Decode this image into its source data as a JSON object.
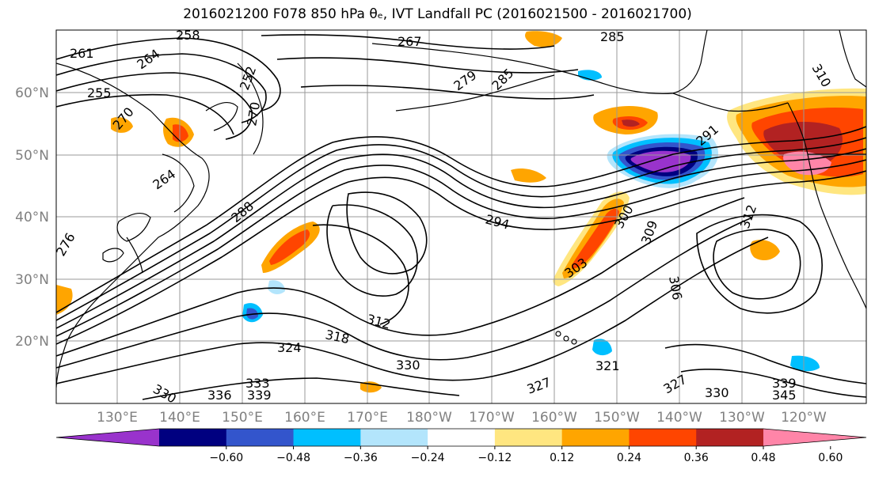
{
  "title": "2016021200 F078 850 hPa θₑ, IVT Landfall PC (2016021500 - 2016021700)",
  "lat_labels": [
    "60°N",
    "50°N",
    "40°N",
    "30°N",
    "20°N"
  ],
  "lon_labels": [
    "130°E",
    "140°E",
    "150°E",
    "160°E",
    "170°E",
    "180°W",
    "170°W",
    "160°W",
    "150°W",
    "140°W",
    "130°W",
    "120°W"
  ],
  "contour_labels": [
    "261",
    "258",
    "267",
    "285",
    "270",
    "264",
    "252",
    "255",
    "270",
    "279",
    "285",
    "291",
    "264",
    "288",
    "294",
    "300",
    "303",
    "309",
    "306",
    "312",
    "312",
    "318",
    "324",
    "330",
    "321",
    "327",
    "330",
    "339",
    "336",
    "327",
    "330",
    "333",
    "339",
    "345",
    "276",
    "310"
  ],
  "colorbar": {
    "ticks": [
      "−0.60",
      "−0.48",
      "−0.36",
      "−0.24",
      "−0.12",
      "0.12",
      "0.24",
      "0.36",
      "0.48",
      "0.60"
    ],
    "colors": [
      "#9933cc",
      "#000080",
      "#3355cc",
      "#00bfff",
      "#b3e5fc",
      "#ffffff",
      "#ffe680",
      "#ffa500",
      "#ff4500",
      "#b22222",
      "#ff85a8"
    ]
  }
}
